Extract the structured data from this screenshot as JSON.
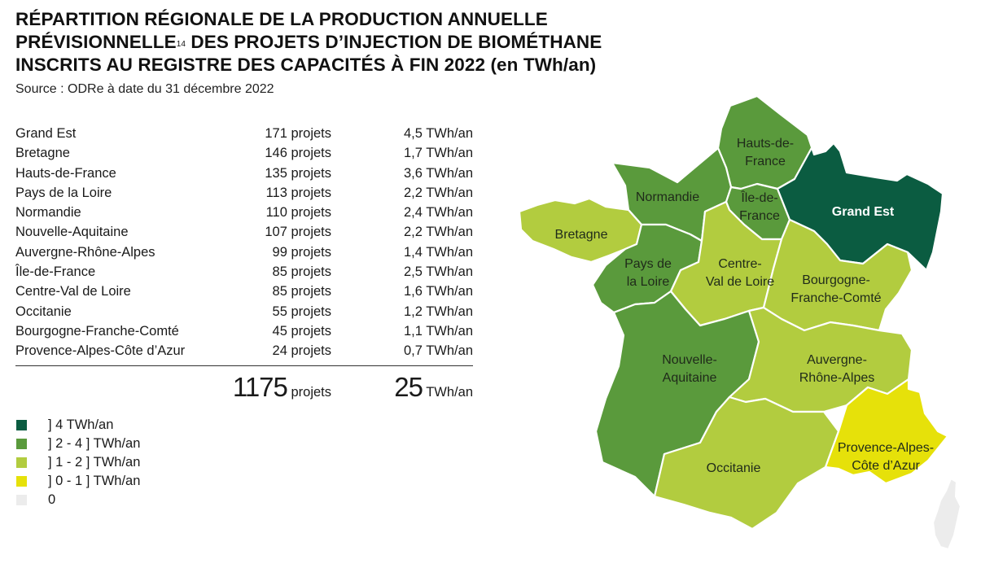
{
  "title": {
    "line1": "RÉPARTITION RÉGIONALE DE LA PRODUCTION ANNUELLE",
    "line2a": "PRÉVISIONNELLE",
    "footnote": "14",
    "line2b": " DES PROJETS D’INJECTION DE BIOMÉTHANE",
    "line3": "INSCRITS AU REGISTRE DES CAPACITÉS À FIN 2022 ",
    "unit": "(en TWh/an)"
  },
  "source": "Source : ODRe à date du 31 décembre 2022",
  "table": {
    "rows": [
      {
        "region": "Grand Est",
        "projets": "171 projets",
        "twh": "4,5 TWh/an"
      },
      {
        "region": "Bretagne",
        "projets": "146 projets",
        "twh": "1,7 TWh/an"
      },
      {
        "region": "Hauts-de-France",
        "projets": "135 projets",
        "twh": "3,6 TWh/an"
      },
      {
        "region": "Pays de la Loire",
        "projets": "113 projets",
        "twh": "2,2 TWh/an"
      },
      {
        "region": "Normandie",
        "projets": "110 projets",
        "twh": "2,4 TWh/an"
      },
      {
        "region": "Nouvelle-Aquitaine",
        "projets": "107 projets",
        "twh": "2,2 TWh/an"
      },
      {
        "region": "Auvergne-Rhône-Alpes",
        "projets": "99 projets",
        "twh": "1,4 TWh/an"
      },
      {
        "region": "Île-de-France",
        "projets": "85 projets",
        "twh": "2,5 TWh/an"
      },
      {
        "region": "Centre-Val de Loire",
        "projets": "85 projets",
        "twh": "1,6 TWh/an"
      },
      {
        "region": "Occitanie",
        "projets": "55 projets",
        "twh": "1,2 TWh/an"
      },
      {
        "region": "Bourgogne-Franche-Comté",
        "projets": "45 projets",
        "twh": "1,1 TWh/an"
      },
      {
        "region": "Provence-Alpes-Côte d’Azur",
        "projets": "24 projets",
        "twh": "0,7 TWh/an"
      }
    ],
    "total": {
      "projets_value": "1175",
      "projets_unit": " projets",
      "twh_value": "25",
      "twh_unit": " TWh/an"
    }
  },
  "legend": [
    {
      "label": "] 4 TWh/an",
      "color": "#0b5c41"
    },
    {
      "label": "] 2 - 4 ] TWh/an",
      "color": "#5a9a3c"
    },
    {
      "label": "] 1 - 2 ] TWh/an",
      "color": "#b2cc3f"
    },
    {
      "label": "] 0 - 1 ] TWh/an",
      "color": "#e6e10a"
    },
    {
      "label": "0",
      "color": "#ececec"
    }
  ],
  "map": {
    "regions": [
      {
        "id": "hauts-de-france",
        "label_lines": [
          "Hauts-de-",
          "France"
        ],
        "class": "2-4"
      },
      {
        "id": "normandie",
        "label_lines": [
          "Normandie"
        ],
        "class": "2-4"
      },
      {
        "id": "ile-de-france",
        "label_lines": [
          "Île-de-",
          "France"
        ],
        "class": "2-4"
      },
      {
        "id": "grand-est",
        "label_lines": [
          "Grand Est"
        ],
        "class": ">4"
      },
      {
        "id": "bretagne",
        "label_lines": [
          "Bretagne"
        ],
        "class": "1-2"
      },
      {
        "id": "pays-de-la-loire",
        "label_lines": [
          "Pays de",
          "la Loire"
        ],
        "class": "2-4"
      },
      {
        "id": "centre-val-de-loire",
        "label_lines": [
          "Centre-",
          "Val de Loire"
        ],
        "class": "1-2"
      },
      {
        "id": "bourgogne-franche-comte",
        "label_lines": [
          "Bourgogne-",
          "Franche-Comté"
        ],
        "class": "1-2"
      },
      {
        "id": "nouvelle-aquitaine",
        "label_lines": [
          "Nouvelle-",
          "Aquitaine"
        ],
        "class": "2-4"
      },
      {
        "id": "auvergne-rhone-alpes",
        "label_lines": [
          "Auvergne-",
          "Rhône-Alpes"
        ],
        "class": "1-2"
      },
      {
        "id": "occitanie",
        "label_lines": [
          "Occitanie"
        ],
        "class": "1-2"
      },
      {
        "id": "provence-alpes-cote-d-azur",
        "label_lines": [
          "Provence-Alpes-",
          "Côte d’Azur"
        ],
        "class": "0-1"
      },
      {
        "id": "corse",
        "label_lines": [],
        "class": "0"
      }
    ]
  }
}
